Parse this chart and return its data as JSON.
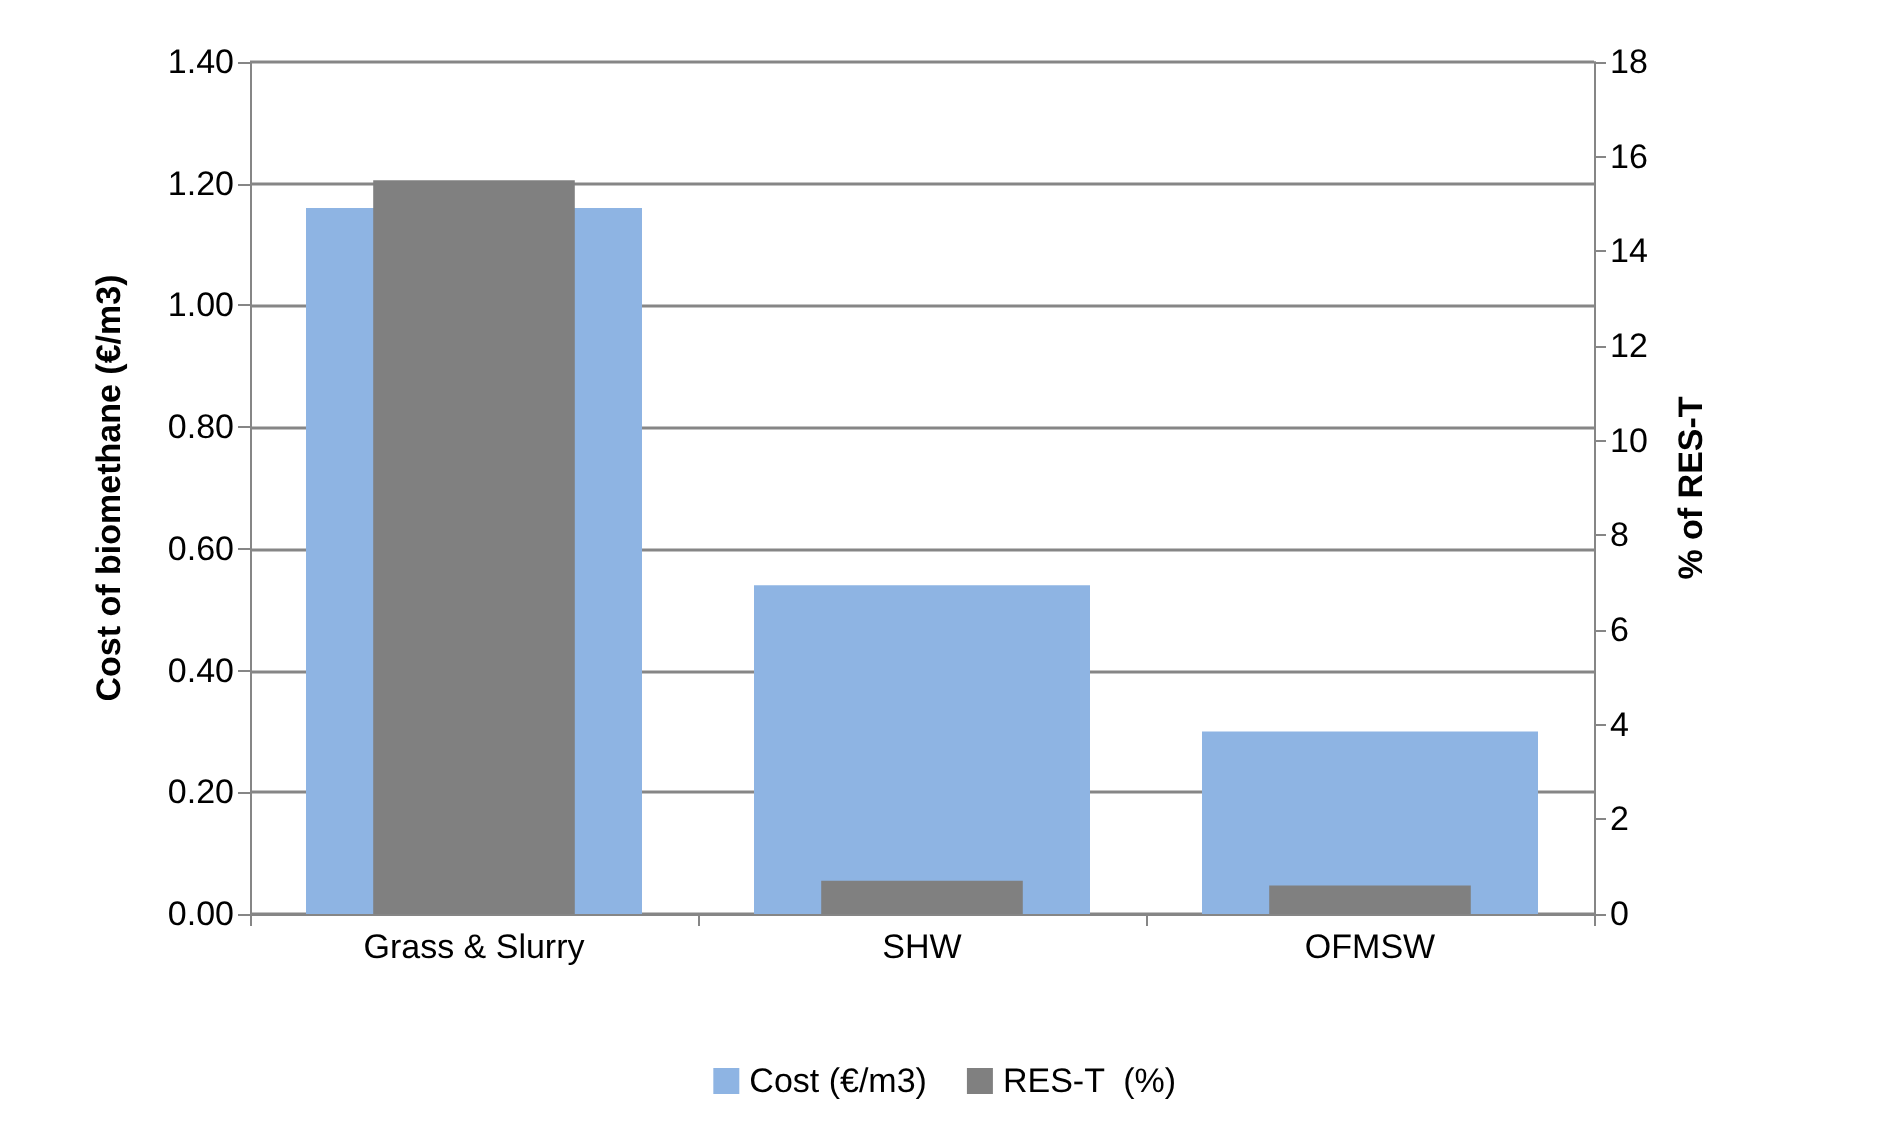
{
  "chart_data": {
    "type": "bar",
    "categories": [
      "Grass & Slurry",
      "SHW",
      "OFMSW"
    ],
    "ylabel": "Cost of biomethane (€/m3)",
    "y2label": "% of RES-T",
    "series": [
      {
        "name": "Cost (€/m3)",
        "color": "#8eb4e3",
        "values": [
          1.16,
          0.54,
          0.3
        ]
      },
      {
        "name": "RES-T  (%)",
        "color": "#808080",
        "values": [
          15.5,
          0.7,
          0.6
        ],
        "axis": "y2"
      }
    ],
    "ylim": [
      0,
      1.4
    ],
    "yticks": [
      {
        "value": 0,
        "label": "0.00"
      },
      {
        "value": 0.2,
        "label": "0.20"
      },
      {
        "value": 0.4,
        "label": "0.40"
      },
      {
        "value": 0.6,
        "label": "0.60"
      },
      {
        "value": 0.8,
        "label": "0.80"
      },
      {
        "value": 1.0,
        "label": "1.00"
      },
      {
        "value": 1.2,
        "label": "1.20"
      },
      {
        "value": 1.4,
        "label": "1.40"
      }
    ],
    "y2lim": [
      0,
      18
    ],
    "y2ticks": [
      0,
      2,
      4,
      6,
      8,
      10,
      12,
      14,
      16,
      18
    ],
    "grid": "y",
    "legend": "bottom"
  }
}
